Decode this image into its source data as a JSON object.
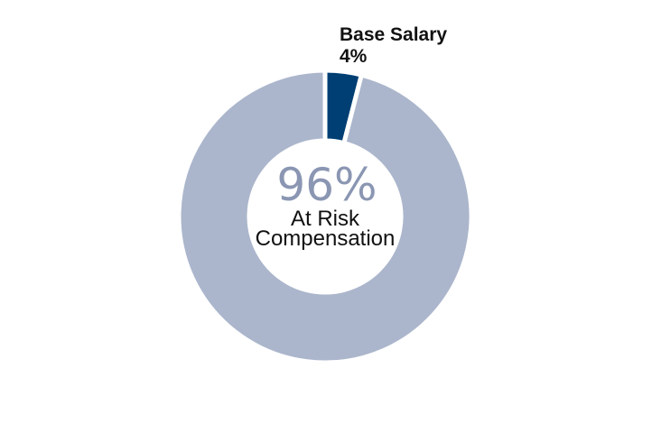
{
  "chart_data": {
    "type": "pie",
    "variant": "donut",
    "slices": [
      {
        "label": "Base Salary",
        "value": 4,
        "value_label": "4%",
        "color": "#003f73"
      },
      {
        "label": "At Risk Compensation",
        "value": 96,
        "value_label": "96%",
        "color": "#abb6cc"
      }
    ],
    "center": {
      "value_label": "96%",
      "label_lines": [
        "At Risk",
        "Compensation"
      ]
    },
    "slice_separator_color": "#ffffff",
    "start_angle_deg": 0,
    "direction": "clockwise"
  }
}
